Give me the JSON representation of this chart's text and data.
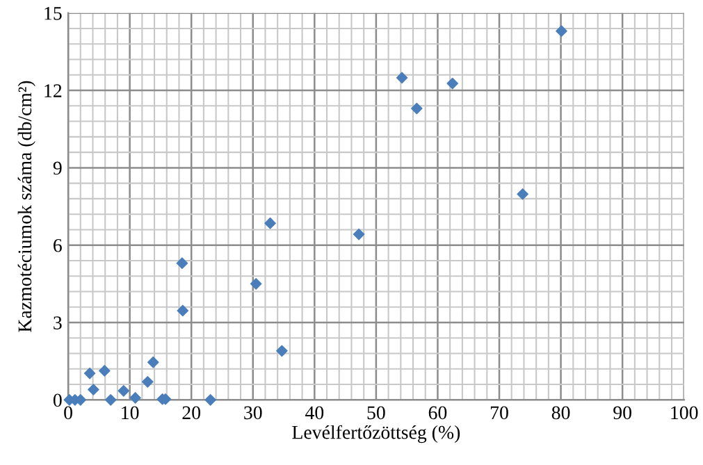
{
  "chart_data": {
    "type": "scatter",
    "xlabel": "Levélfertőzöttség (%)",
    "ylabel": "Kazmotéciumok száma (db/cm²)",
    "x": [
      0.2,
      1.1,
      2.0,
      3.5,
      4.1,
      5.9,
      6.9,
      9.0,
      10.9,
      12.9,
      13.8,
      15.3,
      15.8,
      18.5,
      18.6,
      23.1,
      30.5,
      32.8,
      34.7,
      47.2,
      54.2,
      56.6,
      62.4,
      73.8,
      80.1
    ],
    "series": [
      {
        "color": "#4a7ebb",
        "values": [
          0,
          0,
          0,
          1.03,
          0.4,
          1.13,
          0,
          0.35,
          0.08,
          0.7,
          1.46,
          0.03,
          0.03,
          5.3,
          3.46,
          0,
          4.5,
          6.85,
          1.9,
          6.42,
          12.49,
          11.3,
          12.27,
          7.98,
          14.3
        ]
      }
    ],
    "marker": "diamond",
    "grid": true,
    "legend": false,
    "xlim": [
      0,
      100
    ],
    "ylim": [
      0,
      15
    ],
    "xticks": [
      0,
      {
        "value": 2,
        "label": null
      },
      {
        "value": 4,
        "label": null
      },
      {
        "value": 6,
        "label": null
      },
      {
        "value": 8,
        "label": null
      },
      10,
      {
        "value": 12,
        "label": null
      },
      {
        "value": 14,
        "label": null
      },
      {
        "value": 16,
        "label": null
      },
      {
        "value": 18,
        "label": null
      },
      20,
      {
        "value": 22,
        "label": null
      },
      {
        "value": 24,
        "label": null
      },
      {
        "value": 26,
        "label": null
      },
      {
        "value": 28,
        "label": null
      },
      30,
      {
        "value": 32,
        "label": null
      },
      {
        "value": 34,
        "label": null
      },
      {
        "value": 36,
        "label": null
      },
      {
        "value": 38,
        "label": null
      },
      40,
      {
        "value": 42,
        "label": null
      },
      {
        "value": 44,
        "label": null
      },
      {
        "value": 46,
        "label": null
      },
      {
        "value": 48,
        "label": null
      },
      50,
      {
        "value": 52,
        "label": null
      },
      {
        "value": 54,
        "label": null
      },
      {
        "value": 56,
        "label": null
      },
      {
        "value": 58,
        "label": null
      },
      60,
      {
        "value": 62,
        "label": null
      },
      {
        "value": 64,
        "label": null
      },
      {
        "value": 66,
        "label": null
      },
      {
        "value": 68,
        "label": null
      },
      70,
      {
        "value": 72,
        "label": null
      },
      {
        "value": 74,
        "label": null
      },
      {
        "value": 76,
        "label": null
      },
      {
        "value": 78,
        "label": null
      },
      80,
      {
        "value": 82,
        "label": null
      },
      {
        "value": 84,
        "label": null
      },
      {
        "value": 86,
        "label": null
      },
      {
        "value": 88,
        "label": null
      },
      90,
      {
        "value": 92,
        "label": null
      },
      {
        "value": 94,
        "label": null
      },
      {
        "value": 96,
        "label": null
      },
      {
        "value": 98,
        "label": null
      },
      100
    ],
    "yticks": [
      0,
      {
        "value": 0.6,
        "label": null
      },
      {
        "value": 1.2,
        "label": null
      },
      {
        "value": 1.8,
        "label": null
      },
      {
        "value": 2.4,
        "label": null
      },
      3,
      {
        "value": 3.6,
        "label": null
      },
      {
        "value": 4.2,
        "label": null
      },
      {
        "value": 4.8,
        "label": null
      },
      {
        "value": 5.4,
        "label": null
      },
      6,
      {
        "value": 6.6,
        "label": null
      },
      {
        "value": 7.2,
        "label": null
      },
      {
        "value": 7.8,
        "label": null
      },
      {
        "value": 8.4,
        "label": null
      },
      9,
      {
        "value": 9.6,
        "label": null
      },
      {
        "value": 10.2,
        "label": null
      },
      {
        "value": 10.8,
        "label": null
      },
      {
        "value": 11.4,
        "label": null
      },
      12,
      {
        "value": 12.6,
        "label": null
      },
      {
        "value": 13.2,
        "label": null
      },
      {
        "value": 13.8,
        "label": null
      },
      {
        "value": 14.4,
        "label": null
      },
      15
    ]
  }
}
